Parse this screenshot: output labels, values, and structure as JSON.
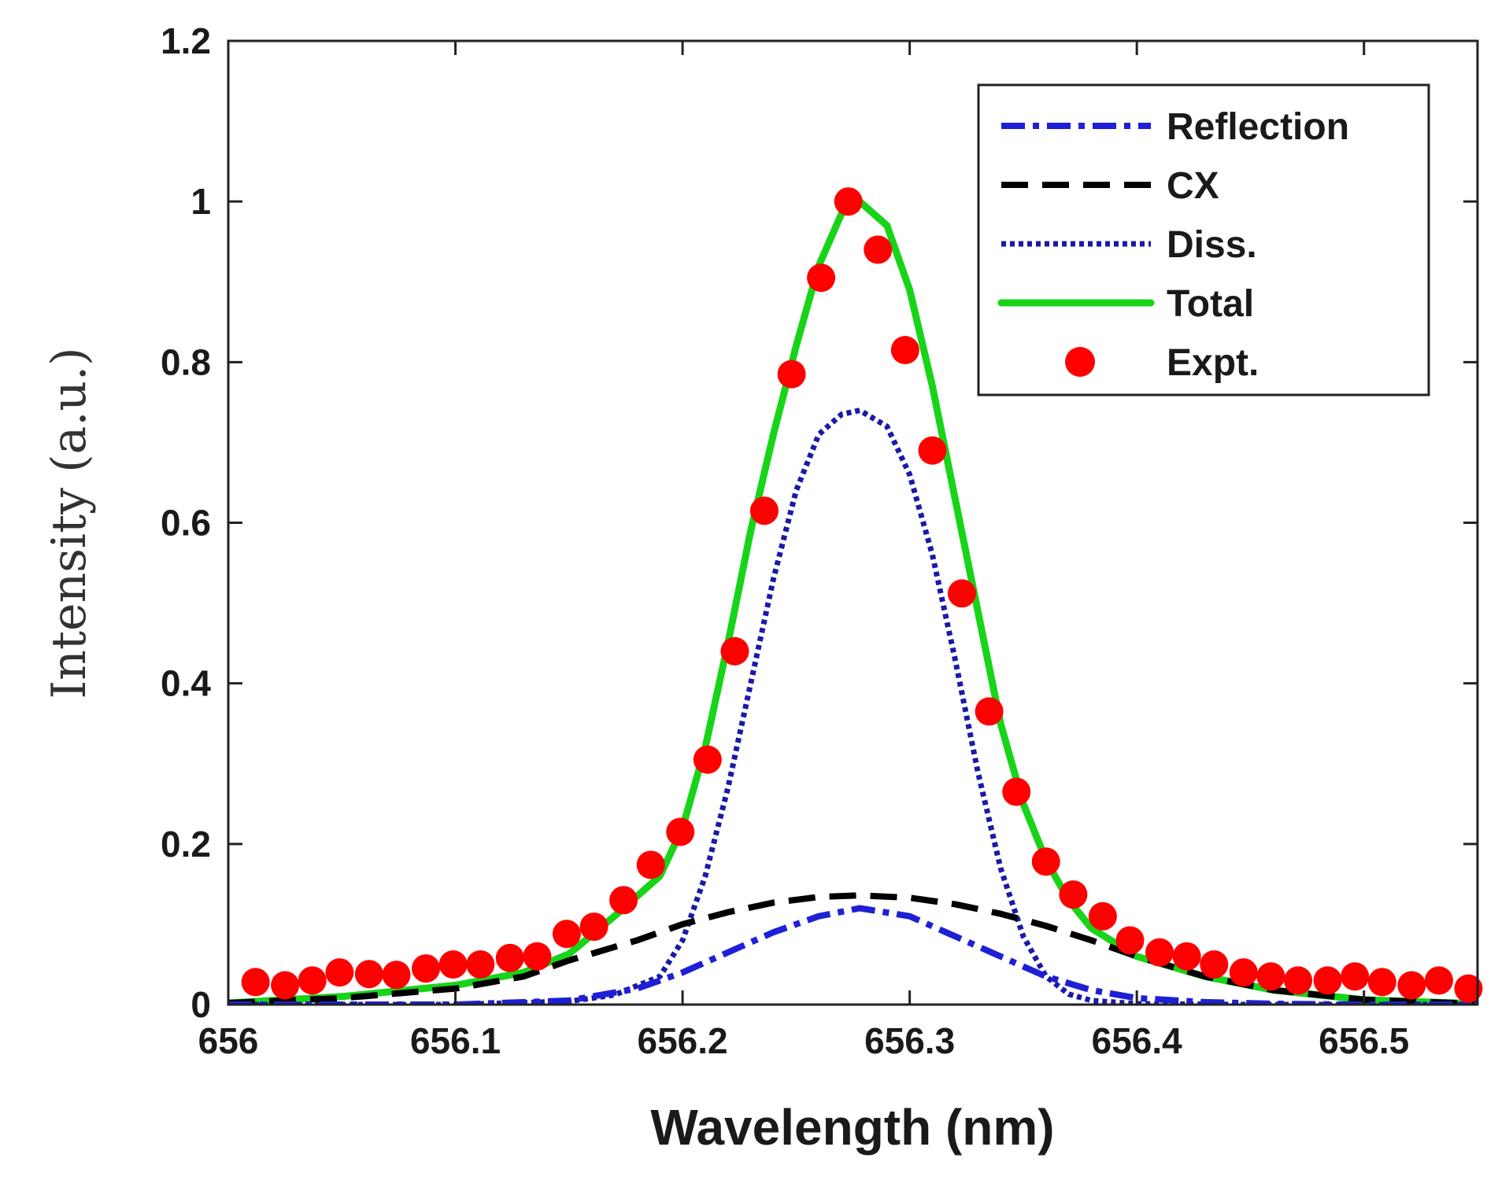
{
  "chart_data": {
    "type": "line",
    "title": "",
    "xlabel": "Wavelength (nm)",
    "ylabel": "Intensity (a.u.)",
    "xlim": [
      656.0,
      656.55
    ],
    "ylim": [
      0,
      1.2
    ],
    "xticks": [
      656.0,
      656.1,
      656.2,
      656.3,
      656.4,
      656.5
    ],
    "xtick_labels": [
      "656",
      "656.1",
      "656.2",
      "656.3",
      "656.4",
      "656.5"
    ],
    "yticks": [
      0,
      0.2,
      0.4,
      0.6,
      0.8,
      1.0,
      1.2
    ],
    "ytick_labels": [
      "0",
      "0.2",
      "0.4",
      "0.6",
      "0.8",
      "1",
      "1.2"
    ],
    "grid": false,
    "legend_position": "top-right",
    "series": [
      {
        "name": "Reflection",
        "style": "dash-dot",
        "color": "#1f1fd6",
        "x": [
          656.0,
          656.1,
          656.15,
          656.18,
          656.2,
          656.22,
          656.24,
          656.26,
          656.278,
          656.3,
          656.32,
          656.34,
          656.36,
          656.38,
          656.4,
          656.43,
          656.46,
          656.5,
          656.55
        ],
        "values": [
          0.0,
          0.0,
          0.005,
          0.02,
          0.04,
          0.065,
          0.09,
          0.11,
          0.12,
          0.11,
          0.085,
          0.06,
          0.035,
          0.018,
          0.008,
          0.003,
          0.001,
          0.0,
          0.0
        ]
      },
      {
        "name": "CX",
        "style": "dashed",
        "color": "#000000",
        "x": [
          656.0,
          656.05,
          656.1,
          656.13,
          656.15,
          656.18,
          656.2,
          656.22,
          656.24,
          656.26,
          656.278,
          656.3,
          656.32,
          656.34,
          656.36,
          656.38,
          656.4,
          656.43,
          656.46,
          656.5,
          656.55
        ],
        "values": [
          0.002,
          0.008,
          0.02,
          0.035,
          0.055,
          0.08,
          0.1,
          0.115,
          0.127,
          0.134,
          0.136,
          0.133,
          0.125,
          0.113,
          0.098,
          0.08,
          0.06,
          0.035,
          0.018,
          0.006,
          0.001
        ]
      },
      {
        "name": "Diss.",
        "style": "dotted",
        "color": "#1a1aa8",
        "x": [
          656.0,
          656.1,
          656.15,
          656.17,
          656.19,
          656.2,
          656.21,
          656.22,
          656.23,
          656.24,
          656.25,
          656.26,
          656.27,
          656.278,
          656.29,
          656.3,
          656.31,
          656.32,
          656.33,
          656.34,
          656.35,
          656.36,
          656.37,
          656.38,
          656.4,
          656.45,
          656.55
        ],
        "values": [
          0.0,
          0.0,
          0.004,
          0.012,
          0.035,
          0.08,
          0.16,
          0.27,
          0.4,
          0.53,
          0.64,
          0.71,
          0.735,
          0.74,
          0.72,
          0.66,
          0.56,
          0.43,
          0.29,
          0.17,
          0.085,
          0.035,
          0.013,
          0.005,
          0.001,
          0.0,
          0.0
        ]
      },
      {
        "name": "Total",
        "style": "solid",
        "color": "#18d418",
        "x": [
          656.0,
          656.05,
          656.1,
          656.13,
          656.15,
          656.17,
          656.19,
          656.2,
          656.21,
          656.22,
          656.23,
          656.24,
          656.25,
          656.26,
          656.27,
          656.278,
          656.29,
          656.3,
          656.31,
          656.32,
          656.33,
          656.34,
          656.35,
          656.36,
          656.37,
          656.38,
          656.4,
          656.43,
          656.46,
          656.5,
          656.55
        ],
        "values": [
          0.002,
          0.01,
          0.024,
          0.04,
          0.063,
          0.11,
          0.16,
          0.22,
          0.32,
          0.45,
          0.59,
          0.71,
          0.82,
          0.92,
          0.985,
          1.0,
          0.97,
          0.89,
          0.77,
          0.63,
          0.49,
          0.35,
          0.25,
          0.18,
          0.13,
          0.095,
          0.06,
          0.035,
          0.018,
          0.006,
          0.001
        ]
      },
      {
        "name": "Expt.",
        "style": "markers",
        "color": "#ff0000",
        "x": [
          656.012,
          656.025,
          656.037,
          656.049,
          656.062,
          656.074,
          656.087,
          656.099,
          656.111,
          656.124,
          656.136,
          656.149,
          656.161,
          656.174,
          656.186,
          656.199,
          656.211,
          656.223,
          656.236,
          656.248,
          656.261,
          656.273,
          656.286,
          656.298,
          656.31,
          656.323,
          656.335,
          656.347,
          656.36,
          656.372,
          656.385,
          656.397,
          656.41,
          656.422,
          656.434,
          656.447,
          656.459,
          656.471,
          656.484,
          656.496,
          656.508,
          656.521,
          656.533,
          656.546
        ],
        "values": [
          0.028,
          0.024,
          0.03,
          0.04,
          0.038,
          0.037,
          0.045,
          0.05,
          0.05,
          0.058,
          0.06,
          0.088,
          0.097,
          0.13,
          0.174,
          0.215,
          0.305,
          0.44,
          0.615,
          0.785,
          0.905,
          1.0,
          0.94,
          0.815,
          0.69,
          0.512,
          0.365,
          0.265,
          0.178,
          0.137,
          0.11,
          0.08,
          0.065,
          0.06,
          0.05,
          0.04,
          0.035,
          0.03,
          0.03,
          0.035,
          0.028,
          0.024,
          0.03,
          0.02
        ]
      }
    ]
  }
}
